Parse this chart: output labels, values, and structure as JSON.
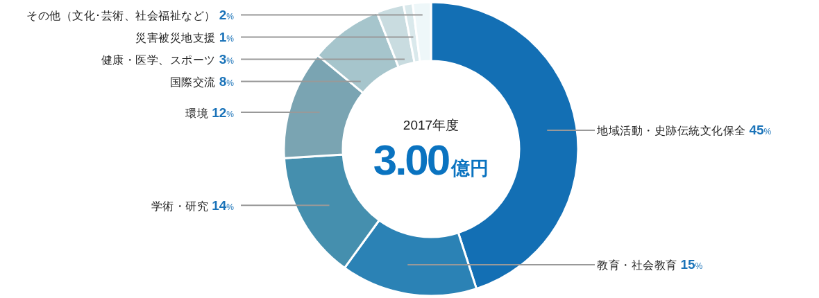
{
  "chart_data": {
    "type": "donut",
    "title": "2017年度",
    "subtitle": "3.00億円",
    "categories": [
      "地域活動・史跡伝統文化保全",
      "教育・社会教育",
      "学術・研究",
      "環境",
      "国際交流",
      "健康・医学、スポーツ",
      "災害被災地支援",
      "その他（文化･芸術、社会福祉など）"
    ],
    "values": [
      45,
      15,
      14,
      12,
      8,
      3,
      1,
      2
    ],
    "colors": [
      "#136fb4",
      "#2b82b5",
      "#458fae",
      "#7aa4b2",
      "#a6c5cc",
      "#c9dce0",
      "#dae9ec",
      "#eef7f9"
    ],
    "value_labels": [
      "45%",
      "15%",
      "14%",
      "12%",
      "8%",
      "3%",
      "1%",
      "2%"
    ]
  }
}
